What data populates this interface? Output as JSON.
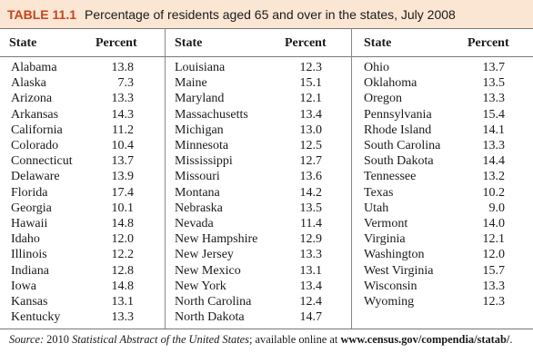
{
  "table": {
    "label": "TABLE 11.1",
    "caption": "Percentage of residents aged 65 and over in the states, July 2008",
    "headers": {
      "state": "State",
      "percent": "Percent"
    },
    "columns": [
      [
        {
          "state": "Alabama",
          "percent": "13.8"
        },
        {
          "state": "Alaska",
          "percent": "7.3"
        },
        {
          "state": "Arizona",
          "percent": "13.3"
        },
        {
          "state": "Arkansas",
          "percent": "14.3"
        },
        {
          "state": "California",
          "percent": "11.2"
        },
        {
          "state": "Colorado",
          "percent": "10.4"
        },
        {
          "state": "Connecticut",
          "percent": "13.7"
        },
        {
          "state": "Delaware",
          "percent": "13.9"
        },
        {
          "state": "Florida",
          "percent": "17.4"
        },
        {
          "state": "Georgia",
          "percent": "10.1"
        },
        {
          "state": "Hawaii",
          "percent": "14.8"
        },
        {
          "state": "Idaho",
          "percent": "12.0"
        },
        {
          "state": "Illinois",
          "percent": "12.2"
        },
        {
          "state": "Indiana",
          "percent": "12.8"
        },
        {
          "state": "Iowa",
          "percent": "14.8"
        },
        {
          "state": "Kansas",
          "percent": "13.1"
        },
        {
          "state": "Kentucky",
          "percent": "13.3"
        }
      ],
      [
        {
          "state": "Louisiana",
          "percent": "12.3"
        },
        {
          "state": "Maine",
          "percent": "15.1"
        },
        {
          "state": "Maryland",
          "percent": "12.1"
        },
        {
          "state": "Massachusetts",
          "percent": "13.4"
        },
        {
          "state": "Michigan",
          "percent": "13.0"
        },
        {
          "state": "Minnesota",
          "percent": "12.5"
        },
        {
          "state": "Mississippi",
          "percent": "12.7"
        },
        {
          "state": "Missouri",
          "percent": "13.6"
        },
        {
          "state": "Montana",
          "percent": "14.2"
        },
        {
          "state": "Nebraska",
          "percent": "13.5"
        },
        {
          "state": "Nevada",
          "percent": "11.4"
        },
        {
          "state": "New Hampshire",
          "percent": "12.9"
        },
        {
          "state": "New Jersey",
          "percent": "13.3"
        },
        {
          "state": "New Mexico",
          "percent": "13.1"
        },
        {
          "state": "New York",
          "percent": "13.4"
        },
        {
          "state": "North Carolina",
          "percent": "12.4"
        },
        {
          "state": "North Dakota",
          "percent": "14.7"
        }
      ],
      [
        {
          "state": "Ohio",
          "percent": "13.7"
        },
        {
          "state": "Oklahoma",
          "percent": "13.5"
        },
        {
          "state": "Oregon",
          "percent": "13.3"
        },
        {
          "state": "Pennsylvania",
          "percent": "15.4"
        },
        {
          "state": "Rhode Island",
          "percent": "14.1"
        },
        {
          "state": "South Carolina",
          "percent": "13.3"
        },
        {
          "state": "South Dakota",
          "percent": "14.4"
        },
        {
          "state": "Tennessee",
          "percent": "13.2"
        },
        {
          "state": "Texas",
          "percent": "10.2"
        },
        {
          "state": "Utah",
          "percent": "9.0"
        },
        {
          "state": "Vermont",
          "percent": "14.0"
        },
        {
          "state": "Virginia",
          "percent": "12.1"
        },
        {
          "state": "Washington",
          "percent": "12.0"
        },
        {
          "state": "West Virginia",
          "percent": "15.7"
        },
        {
          "state": "Wisconsin",
          "percent": "13.3"
        },
        {
          "state": "Wyoming",
          "percent": "12.3"
        }
      ]
    ]
  },
  "source": {
    "prefix": "Source:",
    "year": " 2010 ",
    "publication": "Statistical Abstract of the United States",
    "middle": "; available online at ",
    "url": "www.census.gov/compendia/statab/",
    "suffix": "."
  },
  "colors": {
    "title_bg": "#fbe6d3",
    "label": "#c8431e"
  }
}
